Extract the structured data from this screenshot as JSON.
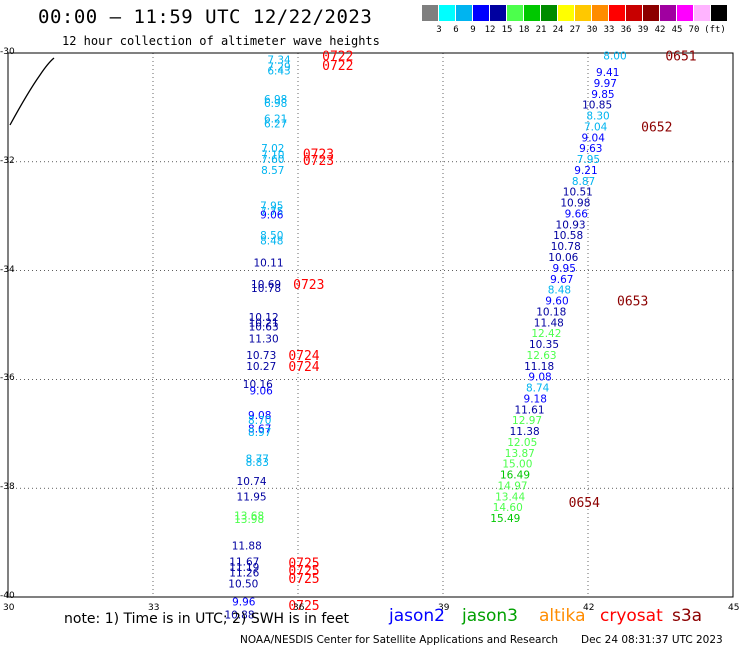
{
  "header": {
    "title": "00:00 — 11:59 UTC 12/22/2023",
    "subtitle": "12 hour collection of altimeter wave heights"
  },
  "scale": {
    "unit": "(ft)",
    "colors": [
      "#7f7f7f",
      "#00ffff",
      "#00b4f0",
      "#0000ff",
      "#0000a0",
      "#4cff4c",
      "#00c800",
      "#008c00",
      "#ffff00",
      "#ffc800",
      "#ff8c00",
      "#ff0000",
      "#c80000",
      "#8c0000",
      "#a000a0",
      "#ff00ff",
      "#ffb4ff",
      "#000000"
    ],
    "labels": [
      "3",
      "6",
      "9",
      "12",
      "15",
      "18",
      "21",
      "24",
      "27",
      "30",
      "33",
      "36",
      "39",
      "42",
      "45",
      "70"
    ]
  },
  "axes": {
    "x_ticks": [
      "30",
      "33",
      "36",
      "39",
      "42",
      "45"
    ],
    "y_ticks": [
      "-30",
      "-32",
      "-34",
      "-36",
      "-38",
      "-40"
    ]
  },
  "chart_data": {
    "type": "scatter",
    "xlim": [
      30,
      45
    ],
    "ylim": [
      -40,
      -30
    ],
    "grid": true,
    "series": [
      {
        "points": [
          {
            "lon": 35.85,
            "lat": -30.12,
            "label": "7.34",
            "color": "#00b4f0"
          },
          {
            "lon": 35.85,
            "lat": -30.25,
            "label": "7.29",
            "color": "#00b4f0"
          },
          {
            "lon": 35.85,
            "lat": -30.32,
            "label": "6.43",
            "color": "#00b4f0"
          },
          {
            "lon": 35.78,
            "lat": -30.85,
            "label": "6.98",
            "color": "#00b4f0"
          },
          {
            "lon": 35.78,
            "lat": -30.92,
            "label": "6.98",
            "color": "#00b4f0"
          },
          {
            "lon": 35.78,
            "lat": -31.2,
            "label": "6.21",
            "color": "#00b4f0"
          },
          {
            "lon": 35.78,
            "lat": -31.3,
            "label": "6.27",
            "color": "#00b4f0"
          },
          {
            "lon": 35.72,
            "lat": -31.75,
            "label": "7.02",
            "color": "#00b4f0"
          },
          {
            "lon": 35.72,
            "lat": -31.87,
            "label": "7.10",
            "color": "#00b4f0"
          },
          {
            "lon": 35.72,
            "lat": -31.95,
            "label": "7.60",
            "color": "#00b4f0"
          },
          {
            "lon": 35.72,
            "lat": -32.15,
            "label": "8.57",
            "color": "#00b4f0"
          },
          {
            "lon": 35.7,
            "lat": -32.8,
            "label": "7.95",
            "color": "#00b4f0"
          },
          {
            "lon": 35.7,
            "lat": -32.9,
            "label": "7.75",
            "color": "#00b4f0"
          },
          {
            "lon": 35.7,
            "lat": -32.97,
            "label": "9.06",
            "color": "#0000ff"
          },
          {
            "lon": 35.7,
            "lat": -33.35,
            "label": "8.50",
            "color": "#00b4f0"
          },
          {
            "lon": 35.7,
            "lat": -33.45,
            "label": "8.48",
            "color": "#00b4f0"
          },
          {
            "lon": 35.7,
            "lat": -33.85,
            "label": "10.11",
            "color": "#0000a0"
          },
          {
            "lon": 35.65,
            "lat": -34.25,
            "label": "10.69",
            "color": "#0000a0"
          },
          {
            "lon": 35.65,
            "lat": -34.32,
            "label": "10.78",
            "color": "#0000a0"
          },
          {
            "lon": 35.6,
            "lat": -34.85,
            "label": "10.12",
            "color": "#0000a0"
          },
          {
            "lon": 35.6,
            "lat": -34.95,
            "label": "10.21",
            "color": "#0000a0"
          },
          {
            "lon": 35.6,
            "lat": -35.03,
            "label": "10.63",
            "color": "#0000a0"
          },
          {
            "lon": 35.6,
            "lat": -35.25,
            "label": "11.30",
            "color": "#0000a0"
          },
          {
            "lon": 35.55,
            "lat": -35.55,
            "label": "10.73",
            "color": "#0000a0"
          },
          {
            "lon": 35.55,
            "lat": -35.75,
            "label": "10.27",
            "color": "#0000a0"
          },
          {
            "lon": 35.48,
            "lat": -36.08,
            "label": "10.16",
            "color": "#0000a0"
          },
          {
            "lon": 35.48,
            "lat": -36.2,
            "label": "9.06",
            "color": "#0000ff"
          },
          {
            "lon": 35.45,
            "lat": -36.65,
            "label": "9.08",
            "color": "#0000ff"
          },
          {
            "lon": 35.45,
            "lat": -36.75,
            "label": "8.70",
            "color": "#00b4f0"
          },
          {
            "lon": 35.45,
            "lat": -36.9,
            "label": "8.67",
            "color": "#0000ff"
          },
          {
            "lon": 35.45,
            "lat": -36.97,
            "label": "8.97",
            "color": "#00b4f0"
          },
          {
            "lon": 35.4,
            "lat": -37.45,
            "label": "8.77",
            "color": "#00b4f0"
          },
          {
            "lon": 35.4,
            "lat": -37.52,
            "label": "8.83",
            "color": "#00b4f0"
          },
          {
            "lon": 35.35,
            "lat": -37.87,
            "label": "10.74",
            "color": "#0000a0"
          },
          {
            "lon": 35.35,
            "lat": -38.15,
            "label": "11.95",
            "color": "#0000a0"
          },
          {
            "lon": 35.3,
            "lat": -38.5,
            "label": "13.68",
            "color": "#4cff4c"
          },
          {
            "lon": 35.3,
            "lat": -38.57,
            "label": "13.98",
            "color": "#4cff4c"
          },
          {
            "lon": 35.25,
            "lat": -39.05,
            "label": "11.88",
            "color": "#0000a0"
          },
          {
            "lon": 35.2,
            "lat": -39.35,
            "label": "11.67",
            "color": "#0000a0"
          },
          {
            "lon": 35.2,
            "lat": -39.45,
            "label": "11.19",
            "color": "#0000a0"
          },
          {
            "lon": 35.2,
            "lat": -39.55,
            "label": "11.26",
            "color": "#0000a0"
          },
          {
            "lon": 35.18,
            "lat": -39.75,
            "label": "10.50",
            "color": "#0000a0"
          },
          {
            "lon": 35.12,
            "lat": -40.08,
            "label": "9.96",
            "color": "#0000ff"
          },
          {
            "lon": 35.1,
            "lat": -40.32,
            "label": "10.88",
            "color": "#0000a0"
          },
          {
            "lon": 42.8,
            "lat": -30.05,
            "label": "8.00",
            "color": "#00b4f0"
          },
          {
            "lon": 42.65,
            "lat": -30.35,
            "label": "9.41",
            "color": "#0000ff"
          },
          {
            "lon": 42.6,
            "lat": -30.55,
            "label": "9.97",
            "color": "#0000ff"
          },
          {
            "lon": 42.55,
            "lat": -30.75,
            "label": "9.85",
            "color": "#0000ff"
          },
          {
            "lon": 42.5,
            "lat": -30.95,
            "label": "10.85",
            "color": "#0000a0"
          },
          {
            "lon": 42.45,
            "lat": -31.15,
            "label": "8.30",
            "color": "#00b4f0"
          },
          {
            "lon": 42.4,
            "lat": -31.35,
            "label": "7.04",
            "color": "#00b4f0"
          },
          {
            "lon": 42.35,
            "lat": -31.55,
            "label": "9.04",
            "color": "#0000ff"
          },
          {
            "lon": 42.3,
            "lat": -31.75,
            "label": "9.63",
            "color": "#0000ff"
          },
          {
            "lon": 42.25,
            "lat": -31.95,
            "label": "7.95",
            "color": "#00b4f0"
          },
          {
            "lon": 42.2,
            "lat": -32.15,
            "label": "9.21",
            "color": "#0000ff"
          },
          {
            "lon": 42.15,
            "lat": -32.35,
            "label": "8.87",
            "color": "#00b4f0"
          },
          {
            "lon": 42.1,
            "lat": -32.55,
            "label": "10.51",
            "color": "#0000a0"
          },
          {
            "lon": 42.05,
            "lat": -32.75,
            "label": "10.98",
            "color": "#0000a0"
          },
          {
            "lon": 42.0,
            "lat": -32.95,
            "label": "9.66",
            "color": "#0000ff"
          },
          {
            "lon": 41.95,
            "lat": -33.15,
            "label": "10.93",
            "color": "#0000a0"
          },
          {
            "lon": 41.9,
            "lat": -33.35,
            "label": "10.58",
            "color": "#0000a0"
          },
          {
            "lon": 41.85,
            "lat": -33.55,
            "label": "10.78",
            "color": "#0000a0"
          },
          {
            "lon": 41.8,
            "lat": -33.75,
            "label": "10.06",
            "color": "#0000a0"
          },
          {
            "lon": 41.75,
            "lat": -33.95,
            "label": "9.95",
            "color": "#0000ff"
          },
          {
            "lon": 41.7,
            "lat": -34.15,
            "label": "9.67",
            "color": "#0000ff"
          },
          {
            "lon": 41.65,
            "lat": -34.35,
            "label": "8.48",
            "color": "#00b4f0"
          },
          {
            "lon": 41.6,
            "lat": -34.55,
            "label": "9.60",
            "color": "#0000ff"
          },
          {
            "lon": 41.55,
            "lat": -34.75,
            "label": "10.18",
            "color": "#0000a0"
          },
          {
            "lon": 41.5,
            "lat": -34.95,
            "label": "11.48",
            "color": "#0000a0"
          },
          {
            "lon": 41.45,
            "lat": -35.15,
            "label": "12.42",
            "color": "#4cff4c"
          },
          {
            "lon": 41.4,
            "lat": -35.35,
            "label": "10.35",
            "color": "#0000a0"
          },
          {
            "lon": 41.35,
            "lat": -35.55,
            "label": "12.63",
            "color": "#4cff4c"
          },
          {
            "lon": 41.3,
            "lat": -35.75,
            "label": "11.18",
            "color": "#0000a0"
          },
          {
            "lon": 41.25,
            "lat": -35.95,
            "label": "9.08",
            "color": "#0000ff"
          },
          {
            "lon": 41.2,
            "lat": -36.15,
            "label": "8.74",
            "color": "#00b4f0"
          },
          {
            "lon": 41.15,
            "lat": -36.35,
            "label": "9.18",
            "color": "#0000ff"
          },
          {
            "lon": 41.1,
            "lat": -36.55,
            "label": "11.61",
            "color": "#0000a0"
          },
          {
            "lon": 41.05,
            "lat": -36.75,
            "label": "12.97",
            "color": "#4cff4c"
          },
          {
            "lon": 41.0,
            "lat": -36.95,
            "label": "11.38",
            "color": "#0000a0"
          },
          {
            "lon": 40.95,
            "lat": -37.15,
            "label": "12.05",
            "color": "#4cff4c"
          },
          {
            "lon": 40.9,
            "lat": -37.35,
            "label": "13.87",
            "color": "#4cff4c"
          },
          {
            "lon": 40.85,
            "lat": -37.55,
            "label": "15.00",
            "color": "#4cff4c"
          },
          {
            "lon": 40.8,
            "lat": -37.75,
            "label": "16.49",
            "color": "#00c800"
          },
          {
            "lon": 40.75,
            "lat": -37.95,
            "label": "14.97",
            "color": "#4cff4c"
          },
          {
            "lon": 40.7,
            "lat": -38.15,
            "label": "13.44",
            "color": "#4cff4c"
          },
          {
            "lon": 40.65,
            "lat": -38.35,
            "label": "14.60",
            "color": "#4cff4c"
          },
          {
            "lon": 40.6,
            "lat": -38.55,
            "label": "15.49",
            "color": "#00c800"
          }
        ]
      }
    ],
    "time_labels": [
      {
        "lon": 36.5,
        "lat": -30.05,
        "label": "0722",
        "color": "#ff0000"
      },
      {
        "lon": 36.5,
        "lat": -30.22,
        "label": "0722",
        "color": "#ff0000"
      },
      {
        "lon": 36.1,
        "lat": -31.85,
        "label": "0723",
        "color": "#ff0000"
      },
      {
        "lon": 36.1,
        "lat": -31.97,
        "label": "0723",
        "color": "#ff0000"
      },
      {
        "lon": 35.9,
        "lat": -34.25,
        "label": "0723",
        "color": "#ff0000"
      },
      {
        "lon": 35.8,
        "lat": -35.55,
        "label": "0724",
        "color": "#ff0000"
      },
      {
        "lon": 35.8,
        "lat": -35.75,
        "label": "0724",
        "color": "#ff0000"
      },
      {
        "lon": 35.8,
        "lat": -39.37,
        "label": "0725",
        "color": "#ff0000"
      },
      {
        "lon": 35.8,
        "lat": -39.5,
        "label": "0725",
        "color": "#ff0000"
      },
      {
        "lon": 35.8,
        "lat": -39.65,
        "label": "0725",
        "color": "#ff0000"
      },
      {
        "lon": 35.8,
        "lat": -40.15,
        "label": "0725",
        "color": "#ff0000"
      },
      {
        "lon": 43.6,
        "lat": -30.05,
        "label": "0651",
        "color": "#8c0000"
      },
      {
        "lon": 43.1,
        "lat": -31.35,
        "label": "0652",
        "color": "#8c0000"
      },
      {
        "lon": 42.6,
        "lat": -34.55,
        "label": "0653",
        "color": "#8c0000"
      },
      {
        "lon": 41.6,
        "lat": -38.25,
        "label": "0654",
        "color": "#8c0000"
      }
    ]
  },
  "footer": {
    "note": "note:  1) Time is in UTC;  2) SWH is in feet",
    "satellites": [
      {
        "name": "jason2",
        "color": "#0000ff"
      },
      {
        "name": "jason3",
        "color": "#00a000"
      },
      {
        "name": "altika",
        "color": "#ff8c00"
      },
      {
        "name": "cryosat",
        "color": "#ff0000"
      },
      {
        "name": "s3a",
        "color": "#8c0000"
      }
    ],
    "credit": "NOAA/NESDIS Center for Satellite Applications and Research",
    "timestamp": "Dec 24 08:31:37 UTC 2023"
  }
}
